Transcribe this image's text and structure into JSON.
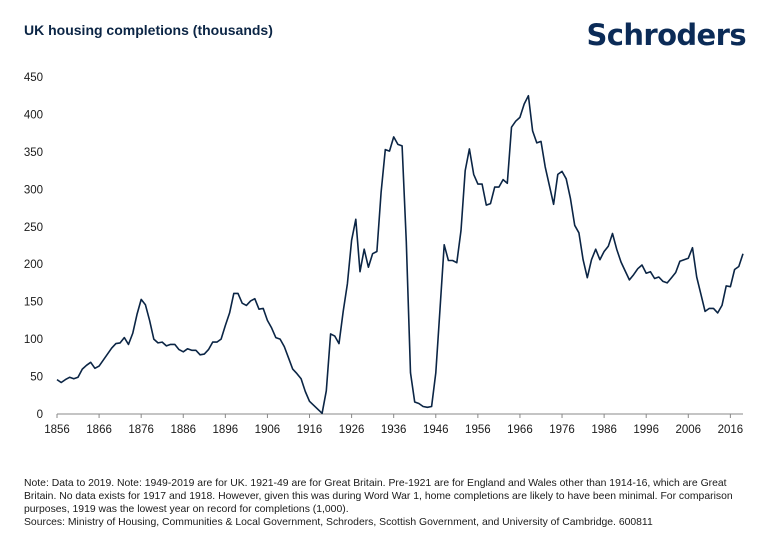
{
  "header": {
    "title": "UK housing completions (thousands)",
    "logo_text": "Schroders"
  },
  "footer": {
    "note": "Note: Data to 2019. Note: 1949-2019 are for UK. 1921-49 are for Great Britain. Pre-1921 are for England and Wales other than 1914-16, which are Great Britain. No data exists for 1917 and 1918. However, given this was during Word War 1, home completions are likely to have been minimal. For comparison purposes, 1919 was the lowest year on record for completions (1,000).",
    "sources": "Sources: Ministry of Housing, Communities & Local Government, Schroders, Scottish Government, and University of Cambridge. 600811"
  },
  "colors": {
    "line": "#0b2545",
    "axis": "#888888"
  },
  "chart_data": {
    "type": "line",
    "title": "UK housing completions (thousands)",
    "xlabel": "",
    "ylabel": "",
    "xlim": [
      1856,
      2019
    ],
    "ylim": [
      0,
      450
    ],
    "grid": false,
    "x_ticks": [
      "1856",
      "1866",
      "1876",
      "1886",
      "1896",
      "1906",
      "1916",
      "1926",
      "1936",
      "1946",
      "1956",
      "1966",
      "1976",
      "1986",
      "1996",
      "2006",
      "2016"
    ],
    "y_ticks": [
      "0",
      "50",
      "100",
      "150",
      "200",
      "250",
      "300",
      "350",
      "400",
      "450"
    ],
    "series": [
      {
        "x": [
          1856,
          1857,
          1858,
          1859,
          1860,
          1861,
          1862,
          1863,
          1864,
          1865,
          1866,
          1867,
          1868,
          1869,
          1870,
          1871,
          1872,
          1873,
          1874,
          1875,
          1876,
          1877,
          1878,
          1879,
          1880,
          1881,
          1882,
          1883,
          1884,
          1885,
          1886,
          1887,
          1888,
          1889,
          1890,
          1891,
          1892,
          1893,
          1894,
          1895,
          1896,
          1897,
          1898,
          1899,
          1900,
          1901,
          1902,
          1903,
          1904,
          1905,
          1906,
          1907,
          1908,
          1909,
          1910,
          1911,
          1912,
          1913,
          1914,
          1915,
          1916,
          1919,
          1920,
          1921,
          1922,
          1923,
          1924,
          1925,
          1926,
          1927,
          1928,
          1929,
          1930,
          1931,
          1932,
          1933,
          1934,
          1935,
          1936,
          1937,
          1938,
          1939,
          1940,
          1941,
          1942,
          1943,
          1944,
          1945,
          1946,
          1947,
          1948,
          1949,
          1950,
          1951,
          1952,
          1953,
          1954,
          1955,
          1956,
          1957,
          1958,
          1959,
          1960,
          1961,
          1962,
          1963,
          1964,
          1965,
          1966,
          1967,
          1968,
          1969,
          1970,
          1971,
          1972,
          1973,
          1974,
          1975,
          1976,
          1977,
          1978,
          1979,
          1980,
          1981,
          1982,
          1983,
          1984,
          1985,
          1986,
          1987,
          1988,
          1989,
          1990,
          1991,
          1992,
          1993,
          1994,
          1995,
          1996,
          1997,
          1998,
          1999,
          2000,
          2001,
          2002,
          2003,
          2004,
          2005,
          2006,
          2007,
          2008,
          2009,
          2010,
          2011,
          2012,
          2013,
          2014,
          2015,
          2016,
          2017,
          2018,
          2019
        ],
        "values": [
          46,
          42,
          46,
          49,
          47,
          49,
          60,
          65,
          69,
          61,
          64,
          72,
          80,
          88,
          94,
          95,
          102,
          93,
          108,
          133,
          153,
          146,
          125,
          100,
          95,
          96,
          91,
          93,
          93,
          86,
          83,
          87,
          85,
          85,
          79,
          80,
          86,
          96,
          96,
          100,
          118,
          135,
          161,
          161,
          148,
          145,
          151,
          154,
          140,
          141,
          125,
          115,
          102,
          100,
          90,
          75,
          60,
          54,
          47,
          30,
          17,
          1,
          31,
          107,
          104,
          94,
          137,
          174,
          232,
          260,
          190,
          220,
          196,
          214,
          217,
          296,
          353,
          351,
          370,
          360,
          358,
          230,
          55,
          16,
          14,
          10,
          9,
          10,
          55,
          140,
          226,
          205,
          205,
          202,
          245,
          325,
          354,
          320,
          307,
          307,
          279,
          281,
          303,
          303,
          313,
          308,
          383,
          391,
          396,
          414,
          425,
          378,
          362,
          364,
          330,
          305,
          280,
          320,
          324,
          314,
          288,
          252,
          242,
          206,
          182,
          206,
          220,
          206,
          217,
          224,
          241,
          220,
          203,
          191,
          179,
          186,
          194,
          199,
          188,
          190,
          181,
          183,
          177,
          175,
          182,
          189,
          204,
          206,
          208,
          222,
          183,
          160,
          137,
          141,
          141,
          135,
          145,
          171,
          170,
          193,
          197,
          214
        ]
      }
    ]
  }
}
